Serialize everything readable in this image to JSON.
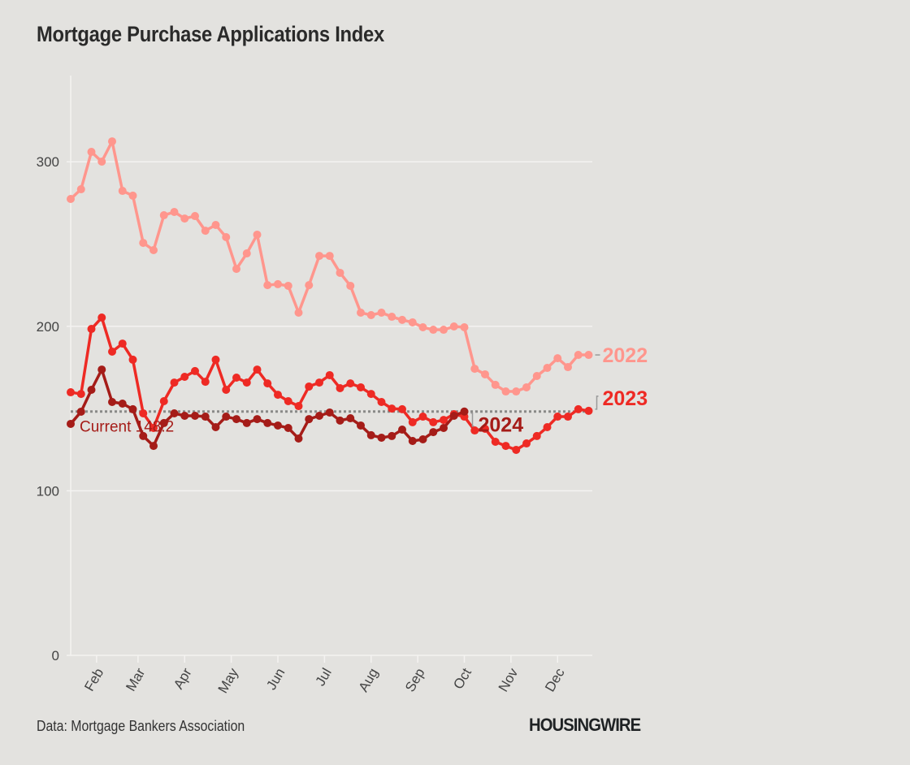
{
  "title": "Mortgage Purchase Applications Index",
  "source": "Data: Mortgage Bankers Association",
  "brand": "HOUSINGWIRE",
  "chart_data": {
    "type": "line",
    "title": "Mortgage Purchase Applications Index",
    "xlabel": "",
    "ylabel": "",
    "ylim": [
      0,
      350
    ],
    "yticks": [
      0,
      100,
      200,
      300
    ],
    "grid": true,
    "x_tick_labels": [
      "Feb",
      "Mar",
      "Apr",
      "May",
      "Jun",
      "Jul",
      "Aug",
      "Sep",
      "Oct",
      "Nov",
      "Dec"
    ],
    "x_tick_weeks": [
      3.5,
      7.5,
      12,
      16.5,
      21,
      25.5,
      30,
      34.5,
      39,
      43.5,
      48
    ],
    "x_range_weeks": [
      1,
      52
    ],
    "reference_line": {
      "value": 148.2,
      "label": "Current 148.2",
      "style": "dotted",
      "color": "#8a8a88"
    },
    "series": [
      {
        "name": "2022",
        "label": "2022",
        "color": "#ff968d",
        "label_color": "#ff968d",
        "values": [
          277.4,
          283.3,
          306.0,
          300.1,
          312.4,
          282.3,
          279.4,
          250.7,
          246.3,
          267.5,
          269.5,
          265.5,
          267.0,
          258.1,
          261.6,
          254.2,
          234.9,
          244.3,
          255.7,
          225.0,
          225.6,
          224.6,
          208.3,
          225.0,
          242.8,
          242.8,
          232.5,
          224.6,
          208.3,
          206.8,
          208.3,
          205.8,
          203.9,
          202.4,
          199.4,
          197.9,
          197.9,
          199.9,
          199.4,
          174.2,
          170.8,
          164.4,
          160.4,
          160.4,
          162.9,
          169.8,
          174.7,
          180.6,
          175.2,
          182.6,
          182.6
        ]
      },
      {
        "name": "2023",
        "label": "2023",
        "color": "#ee2a24",
        "label_color": "#ee2a24",
        "values": [
          159.9,
          158.9,
          198.4,
          205.3,
          184.6,
          189.5,
          179.7,
          147.1,
          138.2,
          154.5,
          165.8,
          169.3,
          172.8,
          166.3,
          179.7,
          161.4,
          168.8,
          165.8,
          173.7,
          165.3,
          158.4,
          154.5,
          151.5,
          163.4,
          165.8,
          170.3,
          162.4,
          165.3,
          162.9,
          158.9,
          154.0,
          150.0,
          149.6,
          141.7,
          145.1,
          141.7,
          143.1,
          146.6,
          145.1,
          136.7,
          137.7,
          129.8,
          127.3,
          124.9,
          128.8,
          133.3,
          138.7,
          145.1,
          145.1,
          149.6,
          148.6
        ]
      },
      {
        "name": "2024",
        "label": "2024",
        "color": "#a51c18",
        "label_color": "#a51c18",
        "values": [
          140.7,
          148.1,
          161.4,
          173.7,
          154.0,
          153.0,
          149.6,
          133.3,
          127.3,
          141.2,
          147.1,
          145.6,
          145.6,
          145.1,
          138.7,
          145.1,
          143.6,
          141.2,
          143.6,
          141.2,
          139.7,
          138.2,
          131.8,
          143.6,
          145.6,
          147.6,
          142.7,
          144.1,
          139.7,
          133.8,
          132.3,
          133.3,
          137.2,
          130.3,
          131.3,
          135.7,
          138.2,
          145.6,
          148.2
        ]
      }
    ],
    "annotations": [
      {
        "text": "Current 148.2",
        "color": "#a51c18"
      }
    ]
  }
}
